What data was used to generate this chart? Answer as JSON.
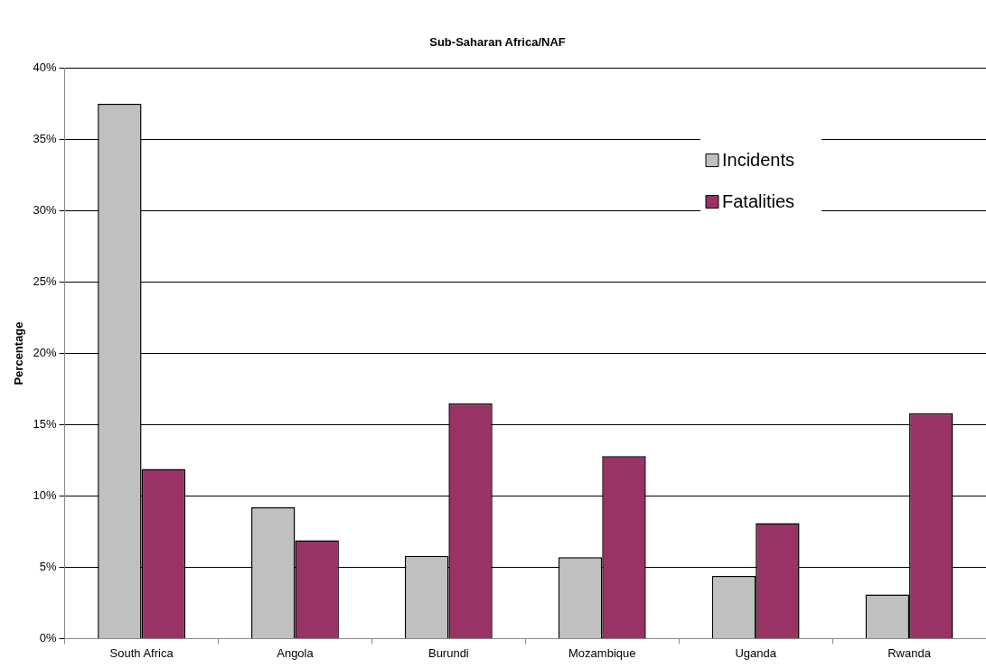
{
  "chart_data": {
    "type": "bar",
    "title": "Sub-Saharan Africa/NAF",
    "ylabel": "Percentage",
    "categories": [
      "South Africa",
      "Angola",
      "Burundi",
      "Mozambique",
      "Uganda",
      "Rwanda"
    ],
    "series": [
      {
        "name": "Incidents",
        "color": "#c0c0c0",
        "values": [
          37.5,
          9.2,
          5.8,
          5.7,
          4.4,
          3.1
        ]
      },
      {
        "name": "Fatalities",
        "color": "#993366",
        "values": [
          11.9,
          6.9,
          16.5,
          12.8,
          8.1,
          15.8
        ]
      }
    ],
    "ylim": [
      0,
      40
    ],
    "yticks": [
      {
        "value": 0,
        "label": "0%"
      },
      {
        "value": 5,
        "label": "5%"
      },
      {
        "value": 10,
        "label": "10%"
      },
      {
        "value": 15,
        "label": "15%"
      },
      {
        "value": 20,
        "label": "20%"
      },
      {
        "value": 25,
        "label": "25%"
      },
      {
        "value": 30,
        "label": "30%"
      },
      {
        "value": 35,
        "label": "35%"
      },
      {
        "value": 40,
        "label": "40%"
      }
    ],
    "grid": "y",
    "legend": "top right"
  }
}
